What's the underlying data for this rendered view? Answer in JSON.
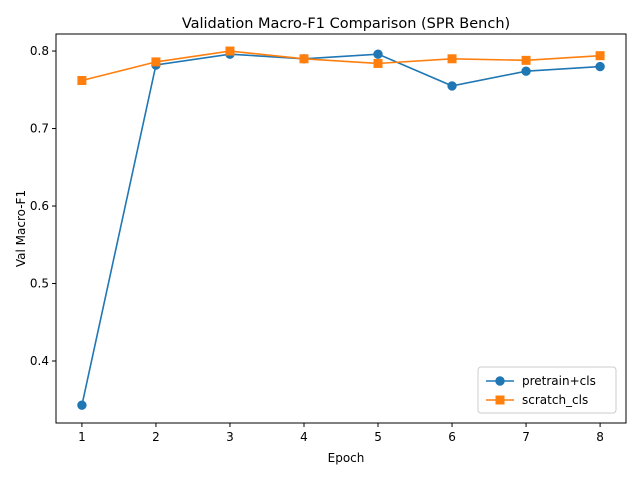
{
  "chart_data": {
    "type": "line",
    "title": "Validation Macro-F1 Comparison (SPR Bench)",
    "xlabel": "Epoch",
    "ylabel": "Val Macro-F1",
    "x": [
      1,
      2,
      3,
      4,
      5,
      6,
      7,
      8
    ],
    "xlim": [
      0.65,
      8.35
    ],
    "ylim": [
      0.32,
      0.822
    ],
    "xticks": [
      1,
      2,
      3,
      4,
      5,
      6,
      7,
      8
    ],
    "yticks": [
      0.4,
      0.5,
      0.6,
      0.7,
      0.8
    ],
    "grid": false,
    "legend_position": "lower-right",
    "series": [
      {
        "name": "pretrain+cls",
        "color": "#1f77b4",
        "marker": "circle",
        "values": [
          0.343,
          0.782,
          0.796,
          0.79,
          0.796,
          0.755,
          0.774,
          0.78
        ]
      },
      {
        "name": "scratch_cls",
        "color": "#ff7f0e",
        "marker": "square",
        "values": [
          0.762,
          0.786,
          0.8,
          0.79,
          0.784,
          0.79,
          0.788,
          0.794
        ]
      }
    ]
  }
}
